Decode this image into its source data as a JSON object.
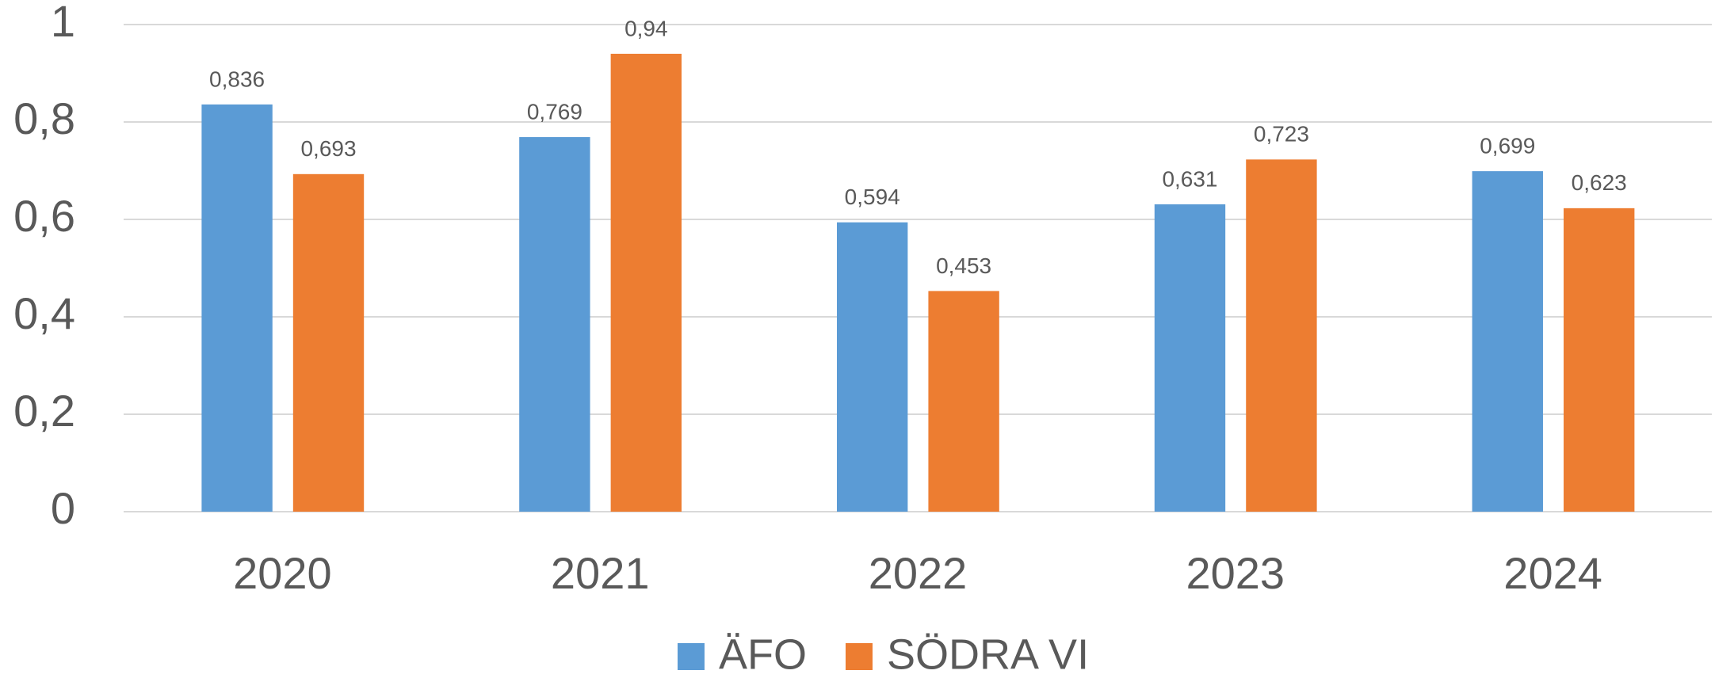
{
  "chart_data": {
    "type": "bar",
    "categories": [
      "2020",
      "2021",
      "2022",
      "2023",
      "2024"
    ],
    "series": [
      {
        "name": "ÄFO",
        "color": "#5b9bd5",
        "values": [
          0.836,
          0.769,
          0.594,
          0.631,
          0.699
        ],
        "value_labels": [
          "0,836",
          "0,769",
          "0,594",
          "0,631",
          "0,699"
        ]
      },
      {
        "name": "SÖDRA VI",
        "color": "#ed7d31",
        "values": [
          0.693,
          0.94,
          0.453,
          0.723,
          0.623
        ],
        "value_labels": [
          "0,693",
          "0,94",
          "0,453",
          "0,723",
          "0,623"
        ]
      }
    ],
    "ylim": [
      0,
      1
    ],
    "yticks": [
      0,
      {
        "value": 0.2,
        "label": "0,2"
      },
      {
        "value": 0.4,
        "label": "0,4"
      },
      {
        "value": 0.6,
        "label": "0,6"
      },
      {
        "value": 0.8,
        "label": "0,8"
      },
      1
    ],
    "grid": true,
    "legend": "bottom"
  }
}
